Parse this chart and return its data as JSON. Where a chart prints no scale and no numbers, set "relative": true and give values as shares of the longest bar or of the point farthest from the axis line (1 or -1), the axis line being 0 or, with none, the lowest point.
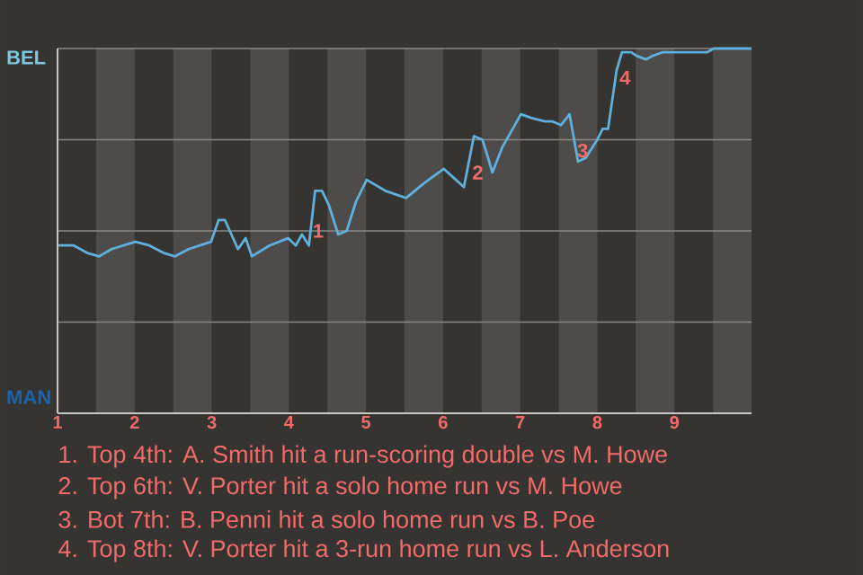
{
  "chart_data": {
    "type": "line",
    "relative": true,
    "x": [
      1.01,
      1.21,
      1.38,
      1.54,
      1.7,
      2.01,
      2.19,
      2.37,
      2.52,
      2.7,
      2.99,
      3.09,
      3.17,
      3.34,
      3.44,
      3.52,
      3.75,
      3.99,
      4.09,
      4.17,
      4.26,
      4.34,
      4.43,
      4.52,
      4.64,
      4.75,
      4.87,
      5.01,
      5.25,
      5.52,
      5.75,
      6.01,
      6.27,
      6.4,
      6.51,
      6.57,
      6.64,
      6.77,
      7.01,
      7.14,
      7.32,
      7.42,
      7.53,
      7.64,
      7.75,
      7.85,
      8.0,
      8.07,
      8.14,
      8.25,
      8.32,
      8.44,
      8.51,
      8.63,
      8.72,
      8.85,
      8.93,
      9.01,
      9.43,
      9.51,
      10
    ],
    "xlim": [
      1,
      10
    ],
    "xticks": [
      {
        "value": 1,
        "label": "1"
      },
      {
        "value": 2,
        "label": "2"
      },
      {
        "value": 3,
        "label": "3"
      },
      {
        "value": 4,
        "label": "4"
      },
      {
        "value": 5,
        "label": "5"
      },
      {
        "value": 6,
        "label": "6"
      },
      {
        "value": 7,
        "label": "7"
      },
      {
        "value": 8,
        "label": "8"
      },
      {
        "value": 9,
        "label": "9"
      }
    ],
    "grid": "y",
    "series": [
      {
        "color": "#5fb0dc",
        "values": [
          0.46,
          0.46,
          0.44,
          0.43,
          0.45,
          0.47,
          0.46,
          0.44,
          0.43,
          0.45,
          0.47,
          0.53,
          0.53,
          0.45,
          0.48,
          0.43,
          0.46,
          0.48,
          0.46,
          0.49,
          0.46,
          0.61,
          0.61,
          0.57,
          0.49,
          0.5,
          0.58,
          0.64,
          0.61,
          0.59,
          0.63,
          0.67,
          0.62,
          0.76,
          0.75,
          0.71,
          0.66,
          0.73,
          0.82,
          0.81,
          0.8,
          0.8,
          0.79,
          0.82,
          0.69,
          0.7,
          0.75,
          0.78,
          0.78,
          0.94,
          0.99,
          0.99,
          0.98,
          0.97,
          0.98,
          0.99,
          0.99,
          0.99,
          0.99,
          1,
          1
        ]
      }
    ],
    "bands": [
      {
        "axis": "x",
        "from": 1.5,
        "to": 2,
        "color": "#4e4c4a"
      },
      {
        "axis": "x",
        "from": 2.5,
        "to": 3,
        "color": "#4e4c4a"
      },
      {
        "axis": "x",
        "from": 3.5,
        "to": 4,
        "color": "#4e4c4a"
      },
      {
        "axis": "x",
        "from": 4.5,
        "to": 5,
        "color": "#4e4c4a"
      },
      {
        "axis": "x",
        "from": 5.5,
        "to": 6,
        "color": "#4e4c4a"
      },
      {
        "axis": "x",
        "from": 6.5,
        "to": 7,
        "color": "#4e4c4a"
      },
      {
        "axis": "x",
        "from": 7.5,
        "to": 8,
        "color": "#4e4c4a"
      },
      {
        "axis": "x",
        "from": 8.5,
        "to": 9,
        "color": "#4e4c4a"
      },
      {
        "axis": "x",
        "from": 9.5,
        "to": 10,
        "color": "#4e4c4a"
      }
    ],
    "annotations": [
      "BEL",
      "MAN",
      {
        "text": "1",
        "x": 4.38,
        "y": 0.5
      },
      {
        "text": "2",
        "x": 6.45,
        "y": 0.66
      },
      {
        "text": "3",
        "x": 7.81,
        "y": 0.72
      },
      {
        "text": "4",
        "x": 8.36,
        "y": 0.92
      },
      "1. Top 4th: A. Smith hit a run-scoring double vs M. Howe",
      "2. Top 6th: V. Porter hit a solo home run vs M. Howe",
      "3. Bot 7th: B. Penni hit a solo home run vs B. Poe",
      "4. Top 8th: V. Porter hit a 3-run home run vs L. Anderson"
    ]
  }
}
